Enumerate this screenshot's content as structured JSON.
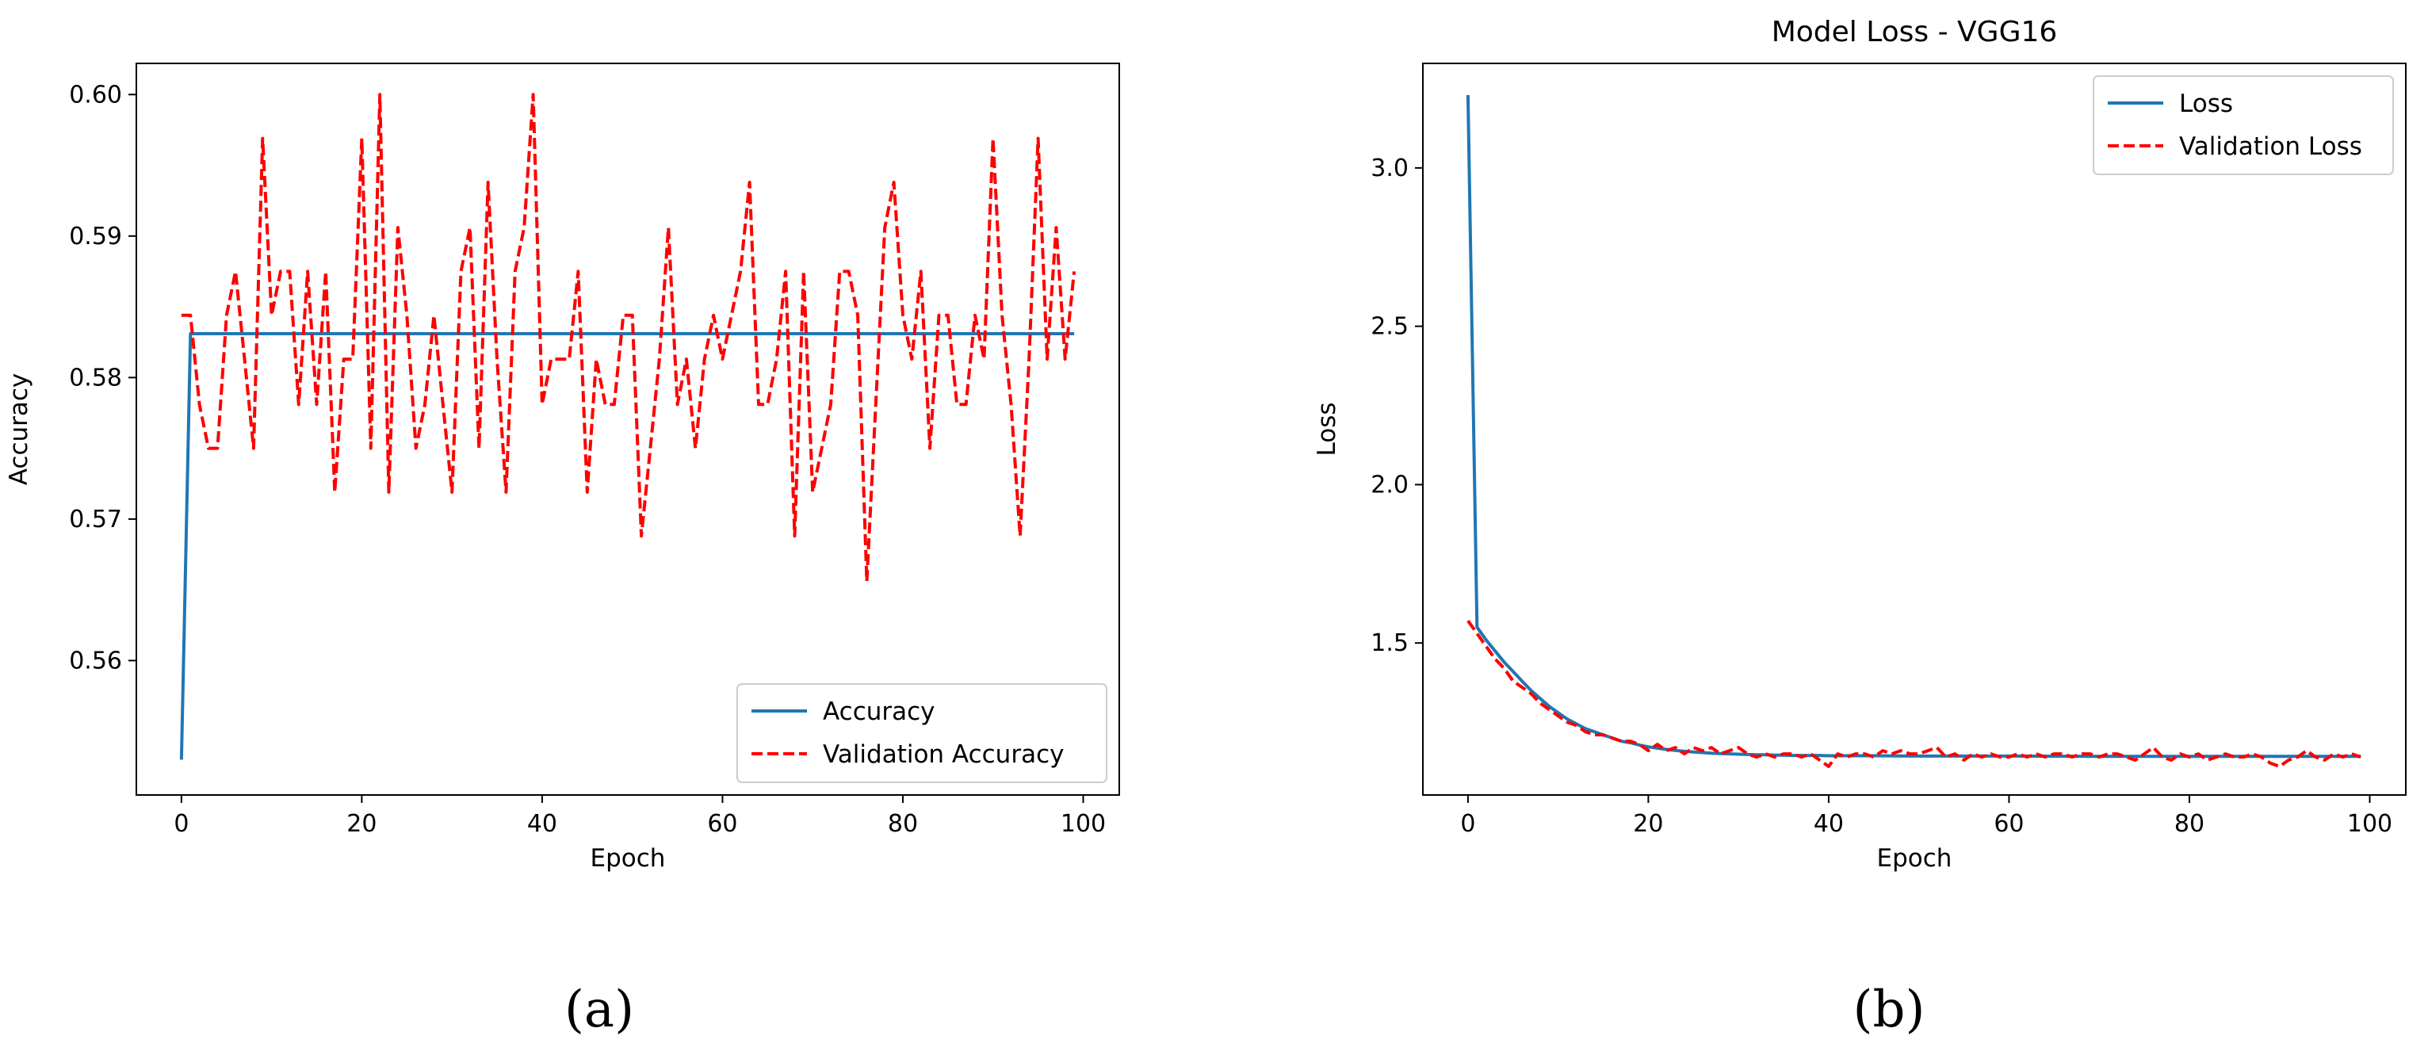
{
  "colors": {
    "train": "#1f77b4",
    "validation": "#ff0000"
  },
  "panel_labels": [
    "(a)",
    "(b)"
  ],
  "chart_data": [
    {
      "type": "line",
      "title": "",
      "xlabel": "Epoch",
      "ylabel": "Accuracy",
      "xlim": [
        -5,
        104
      ],
      "ylim": [
        0.5505,
        0.6022
      ],
      "xticks": [
        0,
        20,
        40,
        60,
        80,
        100
      ],
      "yticks": [
        0.56,
        0.57,
        0.58,
        0.59,
        0.6
      ],
      "ytick_labels": [
        "0.56",
        "0.57",
        "0.58",
        "0.59",
        "0.60"
      ],
      "legend_position": "lower-right",
      "grid": false,
      "series": [
        {
          "name": "Accuracy",
          "style": "solid",
          "x": [
            0,
            1,
            99
          ],
          "y": [
            0.553,
            0.5831,
            0.5831
          ]
        },
        {
          "name": "Validation Accuracy",
          "style": "dashed",
          "x": [
            0,
            1,
            2,
            3,
            4,
            5,
            6,
            7,
            8,
            9,
            10,
            11,
            12,
            13,
            14,
            15,
            16,
            17,
            18,
            19,
            20,
            21,
            22,
            23,
            24,
            25,
            26,
            27,
            28,
            29,
            30,
            31,
            32,
            33,
            34,
            35,
            36,
            37,
            38,
            39,
            40,
            41,
            42,
            43,
            44,
            45,
            46,
            47,
            48,
            49,
            50,
            51,
            52,
            53,
            54,
            55,
            56,
            57,
            58,
            59,
            60,
            61,
            62,
            63,
            64,
            65,
            66,
            67,
            68,
            69,
            70,
            71,
            72,
            73,
            74,
            75,
            76,
            77,
            78,
            79,
            80,
            81,
            82,
            83,
            84,
            85,
            86,
            87,
            88,
            89,
            90,
            91,
            92,
            93,
            94,
            95,
            96,
            97,
            98,
            99
          ],
          "y": [
            0.5844,
            0.5844,
            0.5781,
            0.575,
            0.575,
            0.5844,
            0.5875,
            0.5813,
            0.575,
            0.5969,
            0.5844,
            0.5875,
            0.5875,
            0.5781,
            0.5875,
            0.5781,
            0.5875,
            0.5719,
            0.5813,
            0.5813,
            0.5969,
            0.575,
            0.6,
            0.5719,
            0.5906,
            0.5844,
            0.575,
            0.5781,
            0.5844,
            0.5781,
            0.5719,
            0.5875,
            0.5906,
            0.575,
            0.5938,
            0.5813,
            0.5719,
            0.5875,
            0.5906,
            0.6,
            0.5781,
            0.5813,
            0.5813,
            0.5813,
            0.5875,
            0.5719,
            0.5813,
            0.5781,
            0.5781,
            0.5844,
            0.5844,
            0.5688,
            0.575,
            0.5813,
            0.5906,
            0.5781,
            0.5813,
            0.575,
            0.5813,
            0.5844,
            0.5813,
            0.5844,
            0.5875,
            0.5938,
            0.5781,
            0.5781,
            0.5813,
            0.5875,
            0.5688,
            0.5875,
            0.5719,
            0.575,
            0.5781,
            0.5875,
            0.5875,
            0.5844,
            0.5656,
            0.5781,
            0.5906,
            0.5938,
            0.5844,
            0.5813,
            0.5875,
            0.575,
            0.5844,
            0.5844,
            0.5781,
            0.5781,
            0.5844,
            0.5813,
            0.5969,
            0.5844,
            0.5781,
            0.5688,
            0.5813,
            0.5969,
            0.5813,
            0.5906,
            0.5813,
            0.5875
          ]
        }
      ]
    },
    {
      "type": "line",
      "title": "Model Loss - VGG16",
      "xlabel": "Epoch",
      "ylabel": "Loss",
      "xlim": [
        -5,
        104
      ],
      "ylim": [
        1.02,
        3.33
      ],
      "xticks": [
        0,
        20,
        40,
        60,
        80,
        100
      ],
      "yticks": [
        1.5,
        2.0,
        2.5,
        3.0
      ],
      "ytick_labels": [
        "1.5",
        "2.0",
        "2.5",
        "3.0"
      ],
      "legend_position": "upper-right",
      "grid": false,
      "series": [
        {
          "name": "Loss",
          "style": "solid",
          "x": [
            0,
            1,
            2,
            3,
            4,
            5,
            6,
            7,
            8,
            9,
            10,
            11,
            12,
            13,
            14,
            15,
            16,
            17,
            18,
            19,
            20,
            21,
            22,
            23,
            24,
            25,
            26,
            27,
            28,
            29,
            30,
            31,
            32,
            33,
            34,
            35,
            36,
            37,
            38,
            39,
            40,
            45,
            50,
            60,
            70,
            80,
            90,
            99
          ],
          "y": [
            3.23,
            1.55,
            1.51,
            1.475,
            1.44,
            1.41,
            1.38,
            1.35,
            1.325,
            1.3,
            1.28,
            1.26,
            1.245,
            1.23,
            1.22,
            1.21,
            1.2,
            1.19,
            1.185,
            1.178,
            1.172,
            1.168,
            1.164,
            1.161,
            1.158,
            1.156,
            1.154,
            1.152,
            1.151,
            1.15,
            1.149,
            1.148,
            1.147,
            1.147,
            1.146,
            1.146,
            1.145,
            1.145,
            1.145,
            1.145,
            1.144,
            1.144,
            1.143,
            1.143,
            1.142,
            1.142,
            1.142,
            1.142
          ]
        },
        {
          "name": "Validation Loss",
          "style": "dashed",
          "x": [
            0,
            1,
            2,
            3,
            4,
            5,
            6,
            7,
            8,
            9,
            10,
            11,
            12,
            13,
            14,
            15,
            16,
            17,
            18,
            19,
            20,
            21,
            22,
            23,
            24,
            25,
            26,
            27,
            28,
            29,
            30,
            31,
            32,
            33,
            34,
            35,
            36,
            37,
            38,
            39,
            40,
            41,
            42,
            43,
            44,
            45,
            46,
            47,
            48,
            49,
            50,
            51,
            52,
            53,
            54,
            55,
            56,
            57,
            58,
            59,
            60,
            61,
            62,
            63,
            64,
            65,
            66,
            67,
            68,
            69,
            70,
            71,
            72,
            73,
            74,
            75,
            76,
            77,
            78,
            79,
            80,
            81,
            82,
            83,
            84,
            85,
            86,
            87,
            88,
            89,
            90,
            91,
            92,
            93,
            94,
            95,
            96,
            97,
            98,
            99
          ],
          "y": [
            1.57,
            1.53,
            1.49,
            1.45,
            1.42,
            1.38,
            1.36,
            1.34,
            1.31,
            1.29,
            1.27,
            1.25,
            1.24,
            1.22,
            1.21,
            1.21,
            1.2,
            1.19,
            1.19,
            1.18,
            1.16,
            1.18,
            1.16,
            1.17,
            1.15,
            1.17,
            1.16,
            1.17,
            1.15,
            1.16,
            1.17,
            1.15,
            1.14,
            1.15,
            1.14,
            1.15,
            1.15,
            1.14,
            1.15,
            1.13,
            1.11,
            1.15,
            1.14,
            1.15,
            1.15,
            1.14,
            1.16,
            1.15,
            1.16,
            1.15,
            1.15,
            1.16,
            1.17,
            1.14,
            1.15,
            1.13,
            1.15,
            1.14,
            1.15,
            1.14,
            1.14,
            1.15,
            1.14,
            1.15,
            1.14,
            1.15,
            1.15,
            1.14,
            1.15,
            1.15,
            1.14,
            1.15,
            1.15,
            1.14,
            1.13,
            1.15,
            1.17,
            1.14,
            1.13,
            1.15,
            1.14,
            1.15,
            1.13,
            1.14,
            1.15,
            1.14,
            1.14,
            1.15,
            1.14,
            1.12,
            1.11,
            1.13,
            1.14,
            1.16,
            1.14,
            1.13,
            1.15,
            1.14,
            1.15,
            1.14
          ]
        }
      ]
    }
  ]
}
